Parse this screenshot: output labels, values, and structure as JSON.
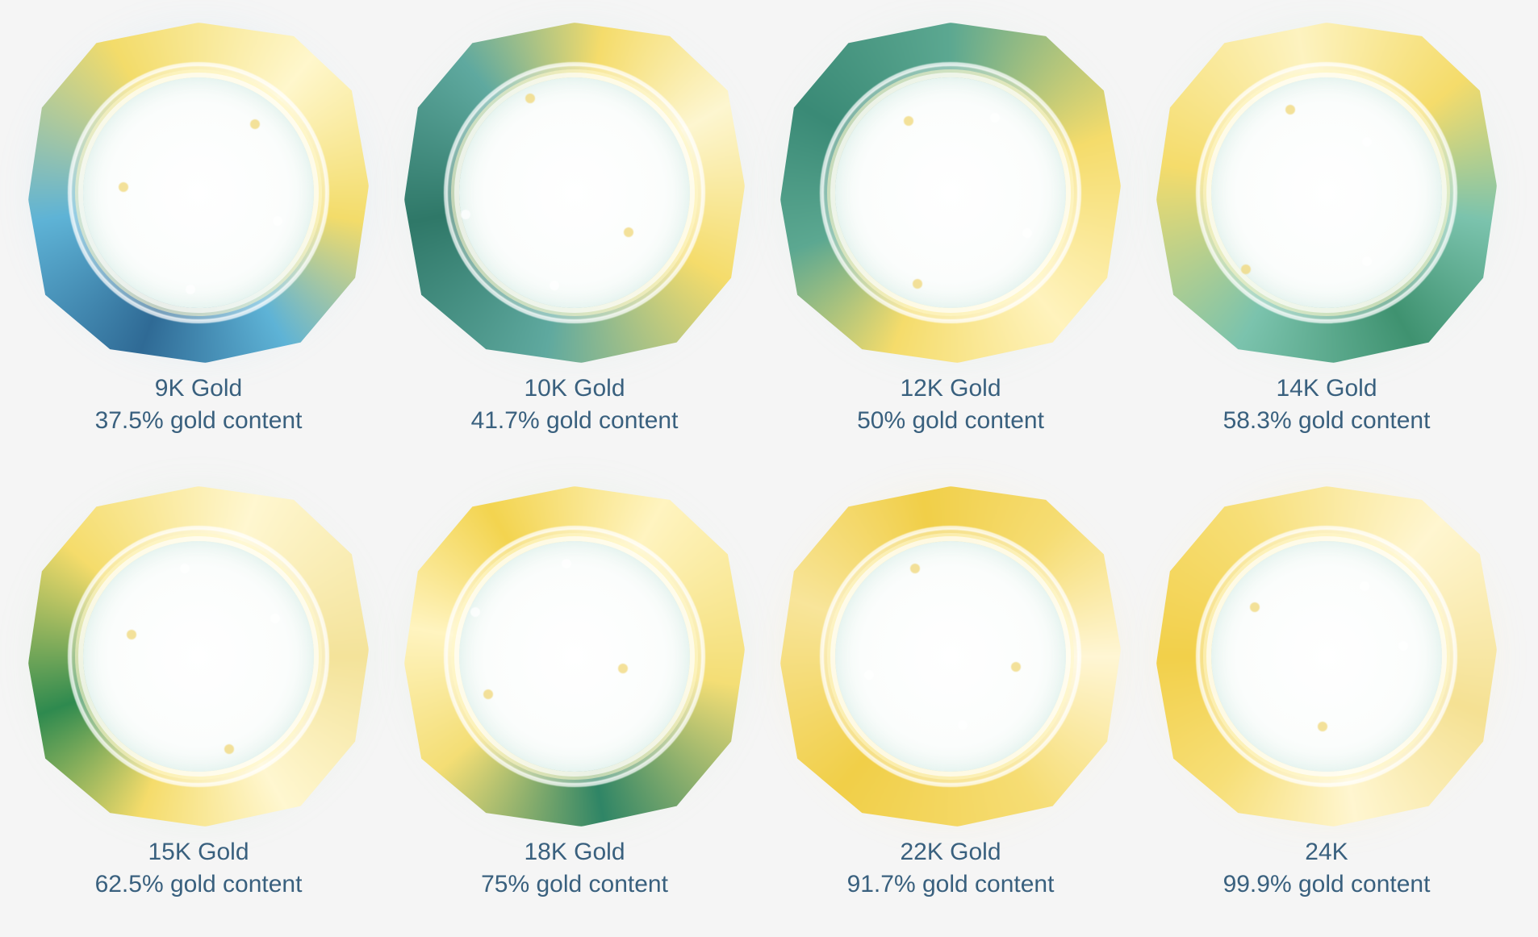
{
  "items": [
    {
      "name": "9K Gold",
      "content": "37.5% gold content",
      "colors": [
        "#2f6a95",
        "#5eb3d6",
        "#f3dc6a",
        "#fff7cc"
      ],
      "glow": "#8cc7e6"
    },
    {
      "name": "10K Gold",
      "content": "41.7% gold content",
      "colors": [
        "#fdf6d0",
        "#f5dc6b",
        "#5fa99f",
        "#2f7868"
      ],
      "glow": "#a8d8c9"
    },
    {
      "name": "12K Gold",
      "content": "50% gold content",
      "colors": [
        "#3a8a76",
        "#5ca891",
        "#f5dc6b",
        "#fff3bd"
      ],
      "glow": "#a8d8c0"
    },
    {
      "name": "14K Gold",
      "content": "58.3% gold content",
      "colors": [
        "#3f9270",
        "#7bc3ad",
        "#f5dc6b",
        "#fdf3c0"
      ],
      "glow": "#a8dcbf"
    },
    {
      "name": "15K Gold",
      "content": "62.5% gold content",
      "colors": [
        "#2e8a4f",
        "#f5dc6b",
        "#fff7d0",
        "#f4e39a"
      ],
      "glow": "#a8d8a8"
    },
    {
      "name": "18K Gold",
      "content": "75% gold content",
      "colors": [
        "#f3d44f",
        "#fff4c0",
        "#f4de75",
        "#2f8566"
      ],
      "glow": "#b4dcae"
    },
    {
      "name": "22K Gold",
      "content": "91.7% gold content",
      "colors": [
        "#fff6d4",
        "#f6dd74",
        "#f1cf48",
        "#f8e59a"
      ],
      "glow": "#f4dc78"
    },
    {
      "name": "24K",
      "content": "99.9% gold content",
      "colors": [
        "#f2d04a",
        "#f7df78",
        "#fff6d0",
        "#f5e193"
      ],
      "glow": "#f6df82"
    }
  ]
}
